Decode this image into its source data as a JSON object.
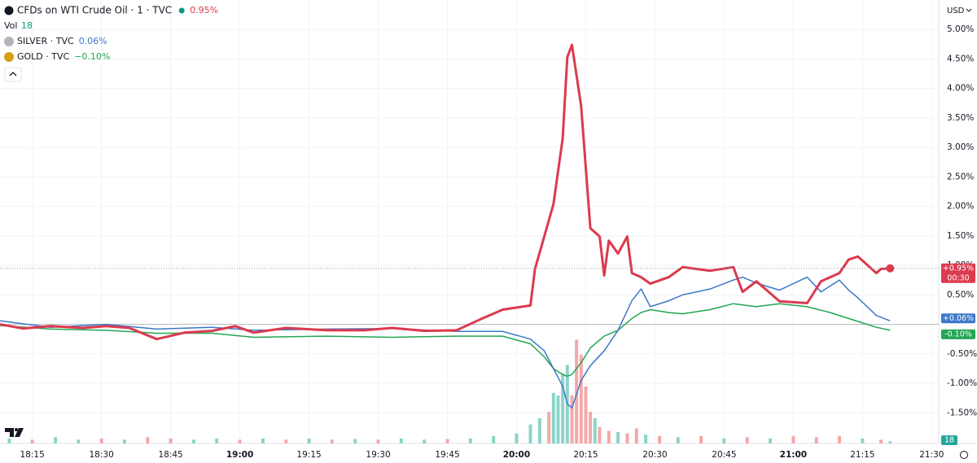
{
  "chart_data": {
    "type": "line",
    "currency": "USD",
    "countdown": "00:30",
    "xlim": [
      "18:08",
      "21:31"
    ],
    "xticks": [
      "18:15",
      "18:30",
      "18:45",
      "19:00",
      "19:15",
      "19:30",
      "19:45",
      "20:00",
      "20:15",
      "20:30",
      "20:45",
      "21:00",
      "21:15",
      "21:30"
    ],
    "ylim": [
      -2.02,
      5.5
    ],
    "yticks": [
      {
        "value": 5,
        "label": "5.00%"
      },
      {
        "value": 4.5,
        "label": "4.50%"
      },
      {
        "value": 4,
        "label": "4.00%"
      },
      {
        "value": 3.5,
        "label": "3.50%"
      },
      {
        "value": 3,
        "label": "3.00%"
      },
      {
        "value": 2.5,
        "label": "2.50%"
      },
      {
        "value": 2,
        "label": "2.00%"
      },
      {
        "value": 1.5,
        "label": "1.50%"
      },
      {
        "value": 1,
        "label": "1.00%"
      },
      {
        "value": 0.5,
        "label": "0.50%"
      },
      {
        "value": -0.5,
        "label": "-0.50%"
      },
      {
        "value": -1,
        "label": "-1.00%"
      },
      {
        "value": -1.5,
        "label": "-1.50%"
      }
    ],
    "grid": true,
    "series": [
      {
        "name": "CFDs on WTI Crude Oil · 1 · TVC",
        "color": "#dc3a4e",
        "legend_value": "0.95%",
        "price_label": "+0.95%",
        "x": [
          "18:08",
          "18:13",
          "18:19",
          "18:26",
          "18:31",
          "18:36",
          "18:42",
          "18:48",
          "18:54",
          "18:59",
          "19:03",
          "19:10",
          "19:19",
          "19:27",
          "19:33",
          "19:40",
          "19:47",
          "19:52",
          "19:57",
          "20:03",
          "20:04",
          "20:06",
          "20:08",
          "20:10",
          "20:11",
          "20:12",
          "20:14",
          "20:16",
          "20:18",
          "20:19",
          "20:20",
          "20:22",
          "20:24",
          "20:25",
          "20:27",
          "20:29",
          "20:33",
          "20:36",
          "20:42",
          "20:47",
          "20:49",
          "20:52",
          "20:57",
          "21:03",
          "21:06",
          "21:10",
          "21:12",
          "21:14",
          "21:18",
          "21:19",
          "21:21"
        ],
        "values": [
          0.0,
          -0.07,
          -0.03,
          -0.06,
          -0.03,
          -0.06,
          -0.25,
          -0.14,
          -0.11,
          -0.03,
          -0.14,
          -0.06,
          -0.1,
          -0.1,
          -0.06,
          -0.11,
          -0.1,
          0.08,
          0.25,
          0.32,
          0.94,
          1.49,
          2.04,
          3.15,
          4.53,
          4.74,
          3.7,
          1.63,
          1.49,
          0.83,
          1.42,
          1.2,
          1.49,
          0.87,
          0.8,
          0.69,
          0.8,
          0.97,
          0.91,
          0.97,
          0.55,
          0.73,
          0.39,
          0.36,
          0.73,
          0.87,
          1.1,
          1.15,
          0.87,
          0.94,
          0.95
        ]
      },
      {
        "name": "SILVER · TVC",
        "color": "#3b78c9",
        "legend_value": "0.06%",
        "price_label": "+0.06%",
        "x": [
          "18:08",
          "18:19",
          "18:31",
          "18:42",
          "18:54",
          "19:03",
          "19:19",
          "19:33",
          "19:47",
          "19:57",
          "20:03",
          "20:06",
          "20:08",
          "20:10",
          "20:11",
          "20:12",
          "20:14",
          "20:16",
          "20:19",
          "20:22",
          "20:25",
          "20:27",
          "20:29",
          "20:33",
          "20:36",
          "20:42",
          "20:47",
          "20:49",
          "20:52",
          "20:57",
          "21:03",
          "21:06",
          "21:10",
          "21:12",
          "21:14",
          "21:18",
          "21:21"
        ],
        "values": [
          0.06,
          -0.05,
          0.0,
          -0.08,
          -0.05,
          -0.1,
          -0.08,
          -0.07,
          -0.12,
          -0.12,
          -0.25,
          -0.45,
          -0.75,
          -1.05,
          -1.35,
          -1.42,
          -0.95,
          -0.7,
          -0.45,
          -0.1,
          0.4,
          0.6,
          0.3,
          0.4,
          0.5,
          0.6,
          0.75,
          0.8,
          0.7,
          0.58,
          0.8,
          0.55,
          0.75,
          0.58,
          0.45,
          0.15,
          0.06
        ]
      },
      {
        "name": "GOLD · TVC",
        "color": "#22a652",
        "legend_value": "−0.10%",
        "price_label": "-0.10%",
        "x": [
          "18:08",
          "18:19",
          "18:31",
          "18:42",
          "18:54",
          "19:03",
          "19:19",
          "19:33",
          "19:47",
          "19:57",
          "20:03",
          "20:06",
          "20:08",
          "20:10",
          "20:11",
          "20:12",
          "20:14",
          "20:16",
          "20:19",
          "20:22",
          "20:25",
          "20:27",
          "20:29",
          "20:33",
          "20:36",
          "20:42",
          "20:47",
          "20:52",
          "20:57",
          "21:03",
          "21:08",
          "21:14",
          "21:18",
          "21:21"
        ],
        "values": [
          -0.02,
          -0.08,
          -0.1,
          -0.15,
          -0.15,
          -0.22,
          -0.2,
          -0.22,
          -0.2,
          -0.2,
          -0.33,
          -0.55,
          -0.75,
          -0.85,
          -0.88,
          -0.85,
          -0.65,
          -0.4,
          -0.2,
          -0.1,
          0.1,
          0.2,
          0.25,
          0.2,
          0.18,
          0.25,
          0.35,
          0.3,
          0.35,
          0.3,
          0.2,
          0.05,
          -0.05,
          -0.1
        ]
      }
    ],
    "volume": {
      "label": "Vol",
      "ylim": [
        0,
        900
      ],
      "up_color": "#8dd4c9",
      "down_color": "#f5a8a8",
      "x": [
        "18:10",
        "18:15",
        "18:20",
        "18:25",
        "18:30",
        "18:35",
        "18:40",
        "18:45",
        "18:50",
        "18:55",
        "19:00",
        "19:05",
        "19:10",
        "19:15",
        "19:20",
        "19:25",
        "19:30",
        "19:35",
        "19:40",
        "19:45",
        "19:50",
        "19:55",
        "20:00",
        "20:03",
        "20:05",
        "20:07",
        "20:08",
        "20:09",
        "20:10",
        "20:11",
        "20:12",
        "20:13",
        "20:14",
        "20:15",
        "20:16",
        "20:17",
        "20:18",
        "20:20",
        "20:22",
        "20:24",
        "20:26",
        "20:28",
        "20:31",
        "20:35",
        "20:40",
        "20:45",
        "20:50",
        "20:55",
        "21:00",
        "21:05",
        "21:10",
        "21:15",
        "21:19",
        "21:21"
      ],
      "values": [
        40,
        30,
        50,
        30,
        40,
        30,
        50,
        40,
        30,
        40,
        30,
        40,
        30,
        40,
        30,
        35,
        30,
        40,
        30,
        35,
        40,
        60,
        80,
        150,
        200,
        250,
        400,
        380,
        550,
        620,
        380,
        820,
        700,
        450,
        250,
        200,
        130,
        100,
        90,
        80,
        120,
        70,
        60,
        50,
        60,
        40,
        50,
        40,
        60,
        50,
        60,
        40,
        30,
        18
      ],
      "up": [
        true,
        false,
        true,
        true,
        false,
        true,
        false,
        false,
        true,
        true,
        false,
        true,
        false,
        true,
        false,
        true,
        false,
        true,
        true,
        false,
        true,
        true,
        true,
        true,
        true,
        false,
        true,
        true,
        true,
        true,
        false,
        false,
        false,
        false,
        false,
        true,
        false,
        false,
        true,
        false,
        false,
        true,
        false,
        true,
        false,
        true,
        false,
        true,
        false,
        false,
        false,
        true,
        false,
        true
      ]
    }
  }
}
